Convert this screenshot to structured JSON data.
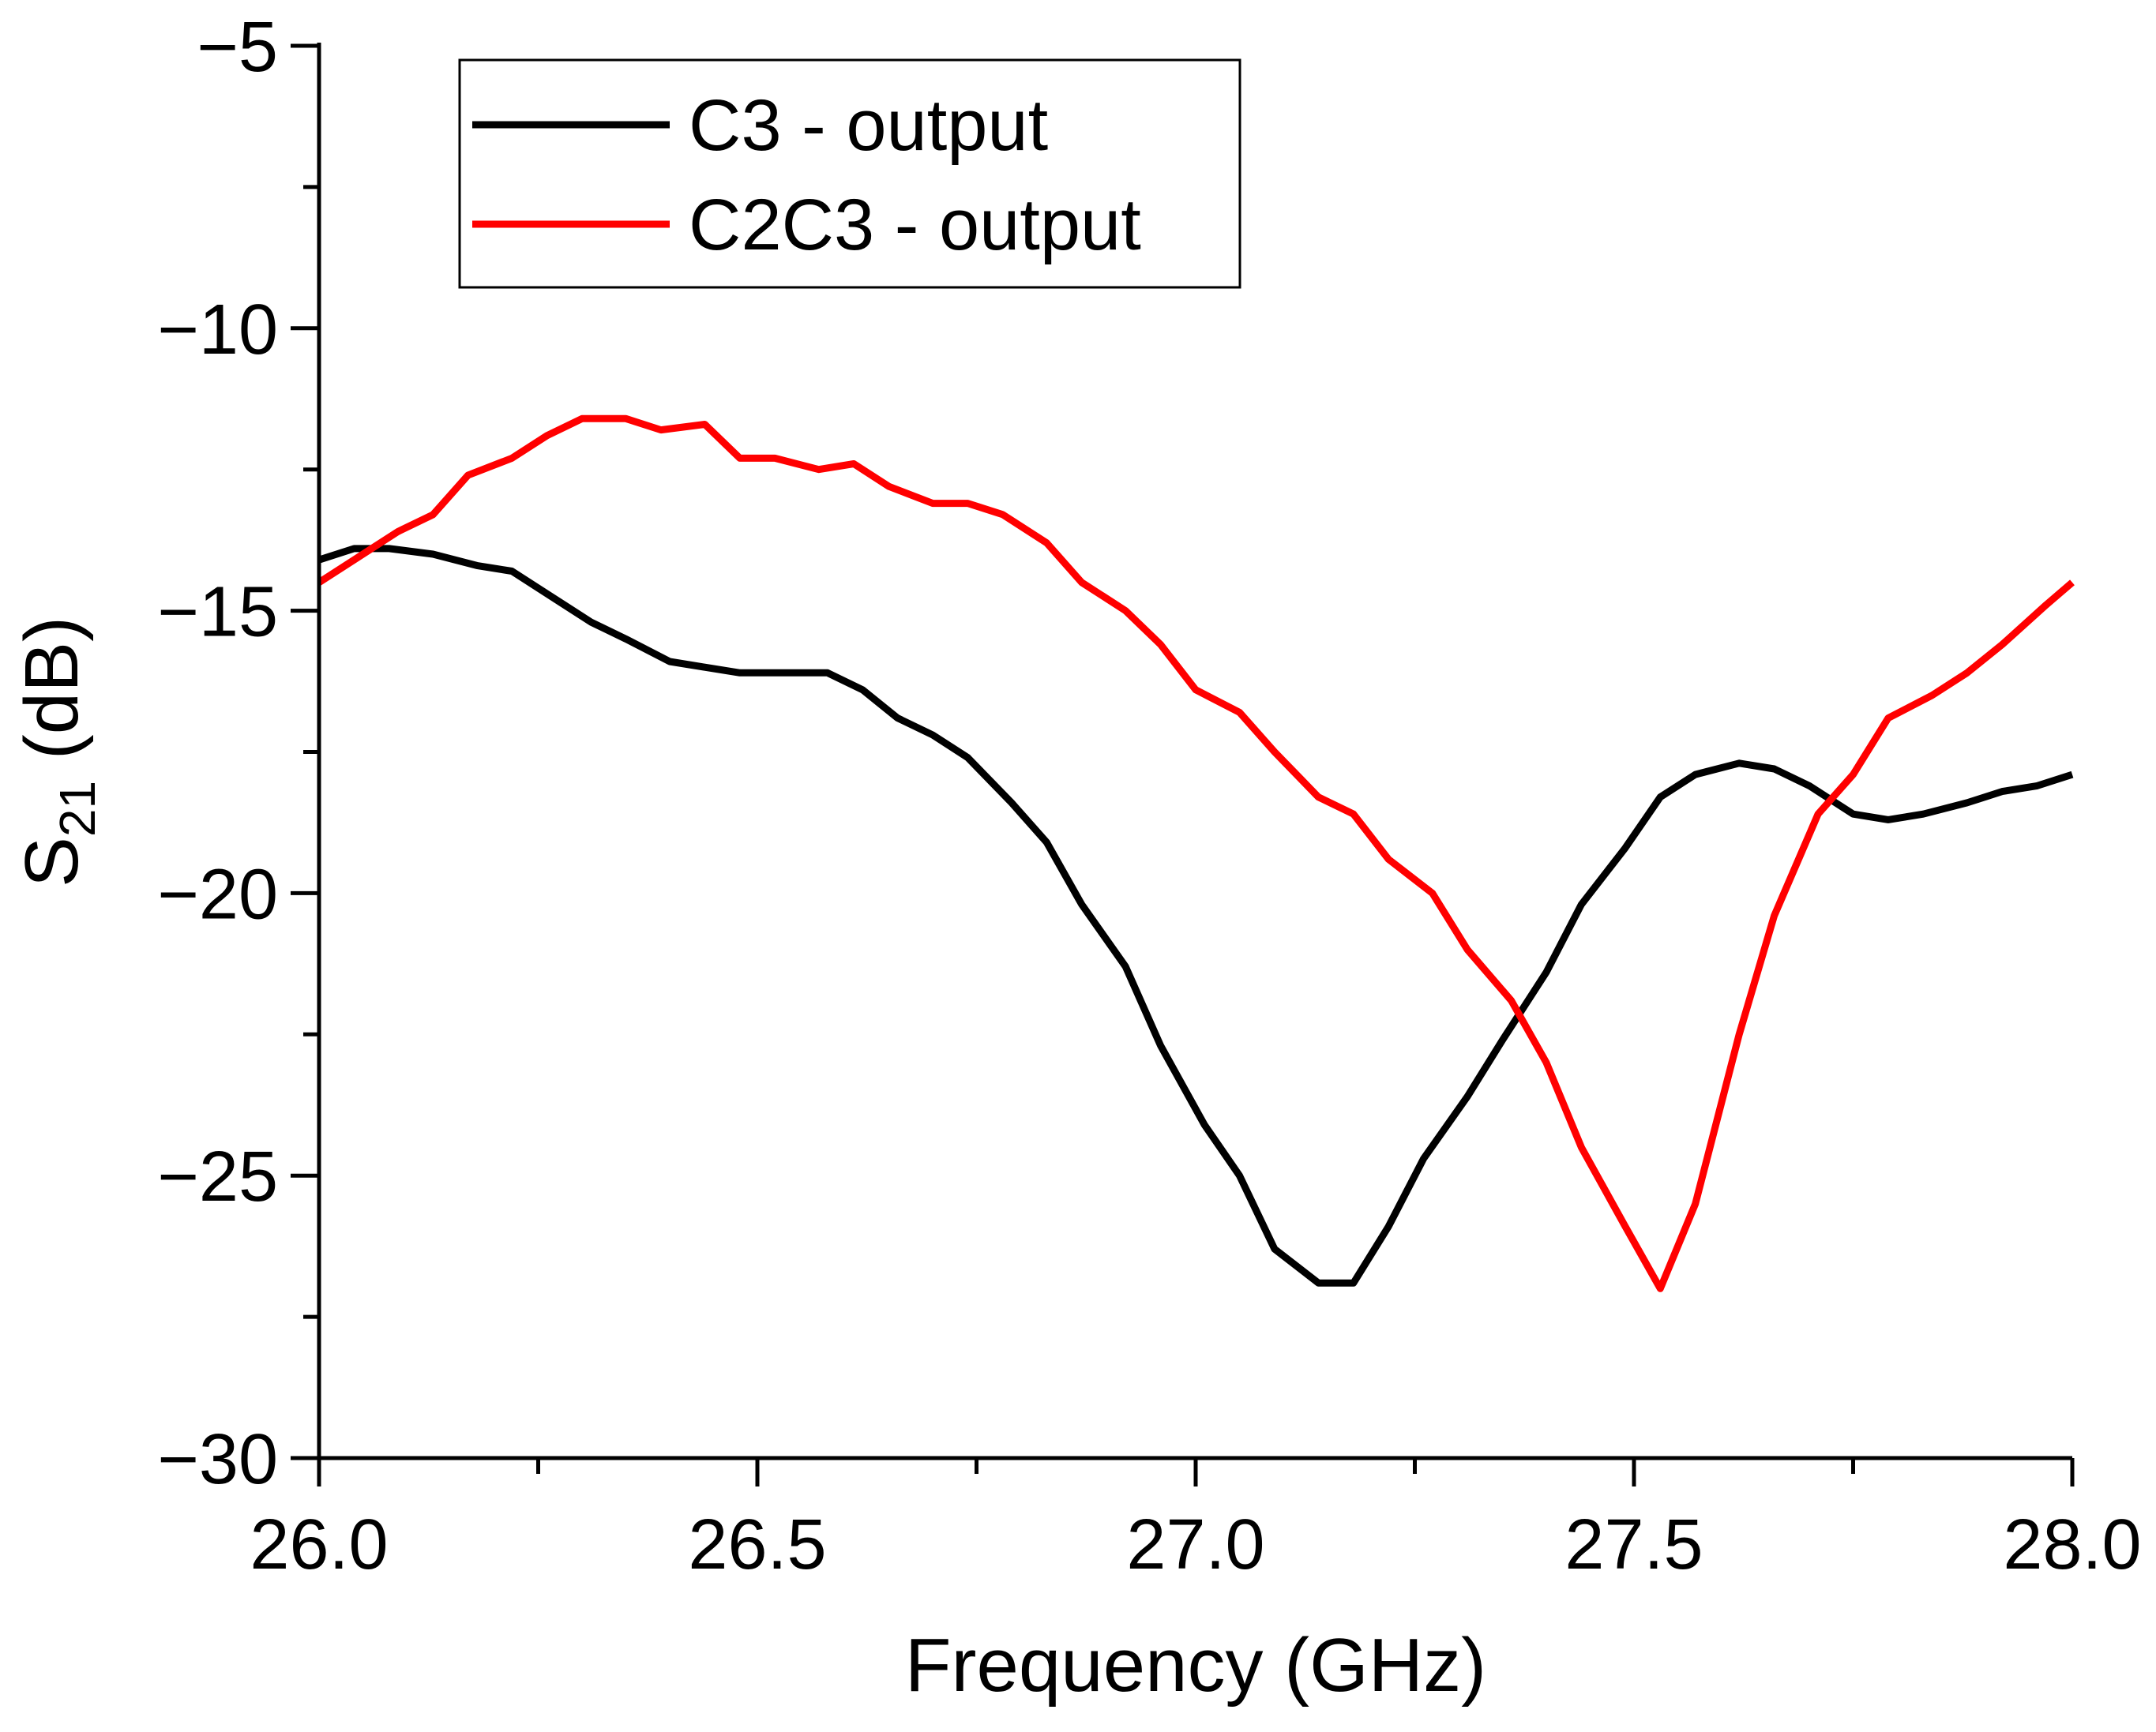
{
  "chart_data": {
    "type": "line",
    "title": "",
    "xlabel": "Frequency (GHz)",
    "ylabel": {
      "base": "S",
      "subscript": "21",
      "suffix": " (dB)"
    },
    "xlim": [
      26.0,
      28.0
    ],
    "ylim": [
      -30,
      -5
    ],
    "x_ticks": [
      {
        "value": 26.0,
        "label": "26.0"
      },
      {
        "value": 26.5,
        "label": "26.5"
      },
      {
        "value": 27.0,
        "label": "27.0"
      },
      {
        "value": 27.5,
        "label": "27.5"
      },
      {
        "value": 28.0,
        "label": "28.0"
      }
    ],
    "x_minor_ticks": [
      26.25,
      26.75,
      27.25,
      27.75
    ],
    "y_ticks": [
      {
        "value": -5,
        "label": "−5"
      },
      {
        "value": -10,
        "label": "−10"
      },
      {
        "value": -15,
        "label": "−15"
      },
      {
        "value": -20,
        "label": "−20"
      },
      {
        "value": -25,
        "label": "−25"
      },
      {
        "value": -30,
        "label": "−30"
      }
    ],
    "y_minor_ticks": [
      -7.5,
      -12.5,
      -17.5,
      -22.5,
      -27.5
    ],
    "grid": false,
    "legend": {
      "position": "top-left"
    },
    "series": [
      {
        "name": "C3 - output",
        "color": "#000000",
        "points": [
          [
            26.0,
            -14.1
          ],
          [
            26.04,
            -13.9
          ],
          [
            26.08,
            -13.9
          ],
          [
            26.13,
            -14.0
          ],
          [
            26.18,
            -14.2
          ],
          [
            26.22,
            -14.3
          ],
          [
            26.26,
            -14.7
          ],
          [
            26.31,
            -15.2
          ],
          [
            26.35,
            -15.5
          ],
          [
            26.4,
            -15.9
          ],
          [
            26.44,
            -16.0
          ],
          [
            26.48,
            -16.1
          ],
          [
            26.53,
            -16.1
          ],
          [
            26.58,
            -16.1
          ],
          [
            26.62,
            -16.4
          ],
          [
            26.66,
            -16.9
          ],
          [
            26.7,
            -17.2
          ],
          [
            26.74,
            -17.6
          ],
          [
            26.79,
            -18.4
          ],
          [
            26.83,
            -19.1
          ],
          [
            26.87,
            -20.2
          ],
          [
            26.92,
            -21.3
          ],
          [
            26.96,
            -22.7
          ],
          [
            27.01,
            -24.1
          ],
          [
            27.05,
            -25.0
          ],
          [
            27.09,
            -26.3
          ],
          [
            27.14,
            -26.9
          ],
          [
            27.18,
            -26.9
          ],
          [
            27.22,
            -25.9
          ],
          [
            27.26,
            -24.7
          ],
          [
            27.31,
            -23.6
          ],
          [
            27.35,
            -22.6
          ],
          [
            27.4,
            -21.4
          ],
          [
            27.44,
            -20.2
          ],
          [
            27.49,
            -19.2
          ],
          [
            27.53,
            -18.3
          ],
          [
            27.57,
            -17.9
          ],
          [
            27.62,
            -17.7
          ],
          [
            27.66,
            -17.8
          ],
          [
            27.7,
            -18.1
          ],
          [
            27.75,
            -18.6
          ],
          [
            27.79,
            -18.7
          ],
          [
            27.83,
            -18.6
          ],
          [
            27.88,
            -18.4
          ],
          [
            27.92,
            -18.2
          ],
          [
            27.96,
            -18.1
          ],
          [
            28.0,
            -17.9
          ]
        ]
      },
      {
        "name": "C2C3 - output",
        "color": "#ff0000",
        "points": [
          [
            26.0,
            -14.5
          ],
          [
            26.04,
            -14.1
          ],
          [
            26.09,
            -13.6
          ],
          [
            26.13,
            -13.3
          ],
          [
            26.17,
            -12.6
          ],
          [
            26.22,
            -12.3
          ],
          [
            26.26,
            -11.9
          ],
          [
            26.3,
            -11.6
          ],
          [
            26.35,
            -11.6
          ],
          [
            26.39,
            -11.8
          ],
          [
            26.44,
            -11.7
          ],
          [
            26.48,
            -12.3
          ],
          [
            26.52,
            -12.3
          ],
          [
            26.57,
            -12.5
          ],
          [
            26.61,
            -12.4
          ],
          [
            26.65,
            -12.8
          ],
          [
            26.7,
            -13.1
          ],
          [
            26.74,
            -13.1
          ],
          [
            26.78,
            -13.3
          ],
          [
            26.83,
            -13.8
          ],
          [
            26.87,
            -14.5
          ],
          [
            26.92,
            -15.0
          ],
          [
            26.96,
            -15.6
          ],
          [
            27.0,
            -16.4
          ],
          [
            27.05,
            -16.8
          ],
          [
            27.09,
            -17.5
          ],
          [
            27.14,
            -18.3
          ],
          [
            27.18,
            -18.6
          ],
          [
            27.22,
            -19.4
          ],
          [
            27.27,
            -20.0
          ],
          [
            27.31,
            -21.0
          ],
          [
            27.36,
            -21.9
          ],
          [
            27.4,
            -23.0
          ],
          [
            27.44,
            -24.5
          ],
          [
            27.49,
            -25.9
          ],
          [
            27.53,
            -27.0
          ],
          [
            27.57,
            -25.5
          ],
          [
            27.62,
            -22.5
          ],
          [
            27.66,
            -20.4
          ],
          [
            27.71,
            -18.6
          ],
          [
            27.75,
            -17.9
          ],
          [
            27.79,
            -16.9
          ],
          [
            27.84,
            -16.5
          ],
          [
            27.88,
            -16.1
          ],
          [
            27.92,
            -15.6
          ],
          [
            27.97,
            -14.9
          ],
          [
            28.0,
            -14.5
          ]
        ]
      }
    ]
  }
}
